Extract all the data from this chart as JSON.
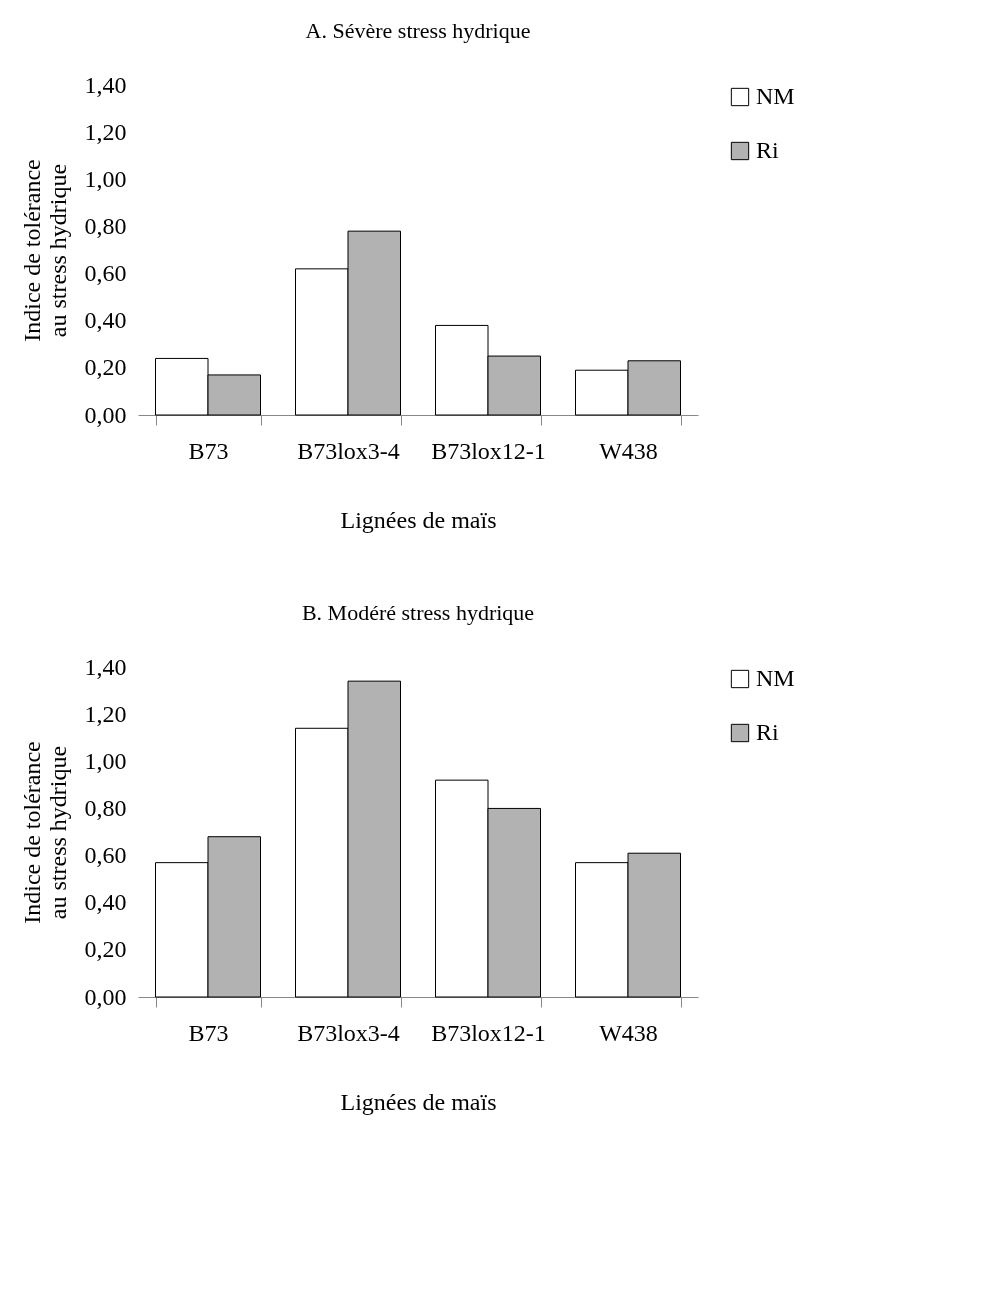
{
  "chart_data": [
    {
      "type": "bar",
      "title": "A. Sévère stress hydrique",
      "xlabel": "Lignées de maïs",
      "ylabel": "Indice de tolérance au stress hydrique",
      "categories": [
        "B73",
        "B73lox3-4",
        "B73lox12-1",
        "W438"
      ],
      "series": [
        {
          "name": "NM",
          "color": "#ffffff",
          "values": [
            0.24,
            0.62,
            0.38,
            0.19
          ]
        },
        {
          "name": "Ri",
          "color": "#b2b2b2",
          "values": [
            0.17,
            0.78,
            0.25,
            0.23
          ]
        }
      ],
      "ylim": [
        0,
        1.4
      ],
      "yticks": [
        {
          "value": 0,
          "label": "0,00"
        },
        {
          "value": 0.2,
          "label": "0,20"
        },
        {
          "value": 0.4,
          "label": "0,40"
        },
        {
          "value": 0.6,
          "label": "0,60"
        },
        {
          "value": 0.8,
          "label": "0,80"
        },
        {
          "value": 1.0,
          "label": "1,00"
        },
        {
          "value": 1.2,
          "label": "1,20"
        },
        {
          "value": 1.4,
          "label": "1,40"
        }
      ],
      "grid": false,
      "legend": "right"
    },
    {
      "type": "bar",
      "title": "B. Modéré stress hydrique",
      "xlabel": "Lignées de maïs",
      "ylabel": "Indice de tolérance au stress hydrique",
      "categories": [
        "B73",
        "B73lox3-4",
        "B73lox12-1",
        "W438"
      ],
      "series": [
        {
          "name": "NM",
          "color": "#ffffff",
          "values": [
            0.57,
            1.14,
            0.92,
            0.57
          ]
        },
        {
          "name": "Ri",
          "color": "#b2b2b2",
          "values": [
            0.68,
            1.34,
            0.8,
            0.61
          ]
        }
      ],
      "ylim": [
        0,
        1.4
      ],
      "yticks": [
        {
          "value": 0,
          "label": "0,00"
        },
        {
          "value": 0.2,
          "label": "0,20"
        },
        {
          "value": 0.4,
          "label": "0,40"
        },
        {
          "value": 0.6,
          "label": "0,60"
        },
        {
          "value": 0.8,
          "label": "0,80"
        },
        {
          "value": 1.0,
          "label": "1,00"
        },
        {
          "value": 1.2,
          "label": "1,20"
        },
        {
          "value": 1.4,
          "label": "1,40"
        }
      ],
      "grid": false,
      "legend": "right"
    }
  ]
}
